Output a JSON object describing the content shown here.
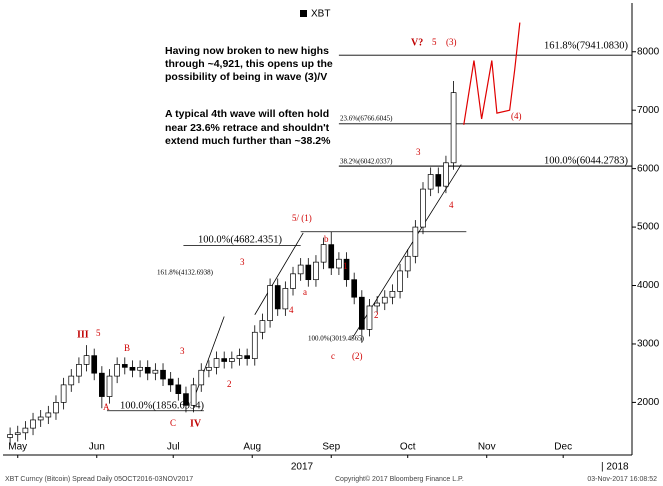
{
  "chart_data": {
    "type": "candlestick",
    "legend": "XBT",
    "x": [
      -3,
      0,
      3,
      6,
      9,
      12,
      15,
      18,
      21,
      24,
      27,
      30,
      33,
      36,
      39,
      42,
      45,
      48,
      51,
      54,
      57,
      60,
      63,
      66,
      69,
      72,
      75,
      78,
      81,
      84,
      87,
      90,
      93,
      96,
      99,
      102,
      105,
      108,
      111,
      114,
      117,
      120,
      123,
      126,
      129,
      132,
      135,
      138,
      141,
      144,
      147,
      150,
      153,
      156,
      159,
      162,
      165,
      168,
      171
    ],
    "open": [
      1400,
      1450,
      1480,
      1560,
      1700,
      1750,
      1820,
      2000,
      2300,
      2450,
      2650,
      2800,
      2500,
      2100,
      2450,
      2650,
      2600,
      2550,
      2600,
      2500,
      2550,
      2400,
      2300,
      2150,
      1950,
      2300,
      2550,
      2600,
      2750,
      2700,
      2750,
      2800,
      2750,
      3200,
      3400,
      4000,
      3600,
      3950,
      4200,
      4350,
      4100,
      4400,
      4700,
      4300,
      4450,
      4100,
      3800,
      3250,
      3650,
      3700,
      3800,
      3900,
      4250,
      4500,
      5000,
      5650,
      5900,
      5700,
      6100
    ],
    "high": [
      1570,
      1600,
      1680,
      1820,
      1870,
      1940,
      2120,
      2420,
      2570,
      2770,
      2980,
      2920,
      2620,
      2570,
      2770,
      2770,
      2720,
      2720,
      2720,
      2670,
      2670,
      2520,
      2420,
      2270,
      2420,
      2670,
      2720,
      2870,
      2870,
      2870,
      2920,
      2920,
      3320,
      3520,
      4120,
      4120,
      4070,
      4320,
      4470,
      4470,
      4520,
      4820,
      4920,
      4570,
      4570,
      4220,
      3920,
      3770,
      3820,
      3920,
      4020,
      4370,
      4620,
      5120,
      5770,
      6020,
      6020,
      6220,
      7500
    ],
    "low": [
      1280,
      1330,
      1360,
      1440,
      1580,
      1630,
      1700,
      1880,
      2180,
      2330,
      2530,
      2380,
      1900,
      1980,
      2330,
      2480,
      2430,
      2430,
      2380,
      2380,
      2280,
      2180,
      2030,
      1830,
      1830,
      2180,
      2430,
      2480,
      2580,
      2580,
      2630,
      2630,
      2630,
      3080,
      3280,
      3480,
      3480,
      3830,
      4080,
      3980,
      3980,
      4280,
      4180,
      4180,
      3980,
      3680,
      3020,
      3130,
      3530,
      3580,
      3680,
      3780,
      4130,
      4380,
      4880,
      5530,
      5580,
      5580,
      5980
    ],
    "close": [
      1450,
      1480,
      1560,
      1700,
      1750,
      1820,
      2000,
      2300,
      2450,
      2650,
      2800,
      2500,
      2100,
      2450,
      2650,
      2600,
      2550,
      2600,
      2500,
      2550,
      2400,
      2300,
      2150,
      1950,
      2300,
      2550,
      2600,
      2750,
      2700,
      2750,
      2800,
      2750,
      3200,
      3400,
      4000,
      3600,
      3950,
      4200,
      4350,
      4100,
      4400,
      4700,
      4300,
      4450,
      4100,
      3800,
      3250,
      3650,
      3700,
      3800,
      3900,
      4250,
      4500,
      5000,
      5650,
      5900,
      5700,
      6100,
      7300
    ],
    "up_color": "#ffffff",
    "down_color": "#000000",
    "xlim": [
      -5,
      241
    ],
    "xticks": [
      {
        "value": 0,
        "label": "May"
      },
      {
        "value": 31,
        "label": "Jun"
      },
      {
        "value": 61,
        "label": "Jul"
      },
      {
        "value": 92,
        "label": "Aug"
      },
      {
        "value": 123,
        "label": "Sep"
      },
      {
        "value": 153,
        "label": "Oct"
      },
      {
        "value": 184,
        "label": "Nov"
      },
      {
        "value": 214,
        "label": "Dec"
      }
    ],
    "ylim": [
      1100,
      8800
    ],
    "yticks": [
      2000,
      3000,
      4000,
      5000,
      6000,
      7000,
      8000
    ],
    "year_labels": [
      "2017",
      "| 2018"
    ],
    "levels": [
      {
        "label": "161.8%(7941.0830)",
        "value": 7941.083,
        "from": 126,
        "to": 241
      },
      {
        "label": "23.6%(6766.6045)",
        "value": 6766.6045,
        "from": 126,
        "to": 241
      },
      {
        "label": "38.2%(6042.0337)",
        "value": 6042.0337,
        "from": 126,
        "to": 241
      },
      {
        "label": "100.0%(6044.2783)",
        "value": 6044.2783,
        "from": 126,
        "to": 241
      },
      {
        "label": "100.0%(4682.4351)",
        "value": 4682.4351,
        "from": 65,
        "to": 111
      },
      {
        "label": "100.0%(1856.6934)",
        "value": 1856.6934,
        "from": 35,
        "to": 73
      }
    ],
    "trendlines": [
      [
        [
          69,
          2050
        ],
        [
          81,
          3470
        ]
      ],
      [
        [
          93,
          3500
        ],
        [
          112,
          4900
        ]
      ],
      [
        [
          131,
          3080
        ],
        [
          174,
          6070
        ]
      ],
      [
        [
          111,
          4920
        ],
        [
          176,
          4920
        ]
      ]
    ],
    "projection": {
      "color": "#e00000",
      "x": [
        175,
        179,
        182,
        186,
        188,
        193,
        195,
        197
      ],
      "y": [
        6750,
        7850,
        6850,
        7850,
        6950,
        7000,
        7700,
        8500
      ]
    },
    "level_notes": [
      "161.8%(4132.6938)",
      "100.0%(3019.4565)"
    ],
    "wave_labels": [
      "III",
      "5",
      "B",
      "A",
      "C",
      "IV",
      "3",
      "2",
      "3",
      "4",
      "a",
      "b",
      "5/ (1)",
      "1",
      "2",
      "c",
      "(2)",
      "3",
      "4",
      "V?",
      "5",
      "(3)",
      "(4)"
    ],
    "notes": [
      "Having now broken to new highs",
      "through ~4,921, this opens up the",
      "possibility of being in wave (3)/V",
      "A typical 4th wave will often hold",
      "near 23.6% retrace and shouldn't",
      "extend much further than ~38.2%"
    ],
    "footer": [
      "XBT Curncy (Bitcoin) Spread Daily 05OCT2016-03NOV2017",
      "Copyright© 2017 Bloomberg Finance L.P.",
      "03-Nov-2017 16:08:52"
    ]
  }
}
